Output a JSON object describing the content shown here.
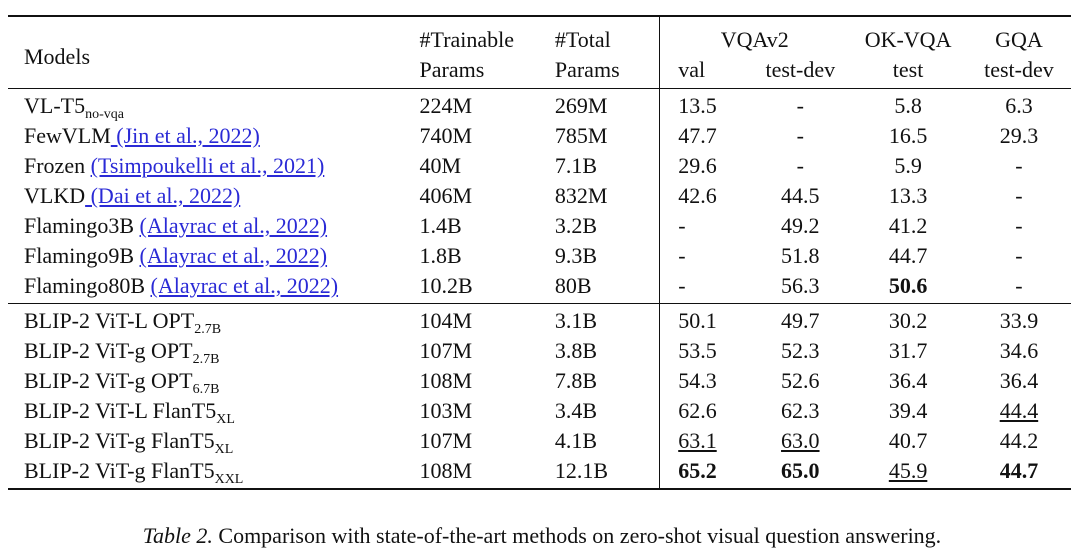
{
  "header": {
    "models": "Models",
    "trainable": [
      "#Trainable",
      "Params"
    ],
    "total": [
      "#Total",
      "Params"
    ],
    "vqav2": "VQAv2",
    "okvqa": "OK-VQA",
    "gqa": "GQA",
    "val": "val",
    "testdev": "test-dev",
    "test": "test",
    "gqa_testdev": "test-dev"
  },
  "rows": [
    {
      "name": "VL-T5",
      "sub": "no-vqa",
      "cite": "",
      "trainable": "224M",
      "total": "269M",
      "val": "13.5",
      "testdev": "-",
      "okvqa": "5.8",
      "gqa": "6.3"
    },
    {
      "name": "FewVLM",
      "sub": "",
      "cite": " (Jin et al., 2022)",
      "trainable": "740M",
      "total": "785M",
      "val": "47.7",
      "testdev": "-",
      "okvqa": "16.5",
      "gqa": "29.3"
    },
    {
      "name": "Frozen ",
      "sub": "",
      "cite": "(Tsimpoukelli et al., 2021)",
      "trainable": "40M",
      "total": "7.1B",
      "val": "29.6",
      "testdev": "-",
      "okvqa": "5.9",
      "gqa": "-"
    },
    {
      "name": "VLKD",
      "sub": "",
      "cite": " (Dai et al., 2022)",
      "trainable": "406M",
      "total": "832M",
      "val": "42.6",
      "testdev": "44.5",
      "okvqa": "13.3",
      "gqa": "-"
    },
    {
      "name": "Flamingo3B ",
      "sub": "",
      "cite": "(Alayrac et al., 2022)",
      "trainable": "1.4B",
      "total": "3.2B",
      "val": "-",
      "testdev": "49.2",
      "okvqa": "41.2",
      "gqa": "-"
    },
    {
      "name": "Flamingo9B ",
      "sub": "",
      "cite": "(Alayrac et al., 2022)",
      "trainable": "1.8B",
      "total": "9.3B",
      "val": "-",
      "testdev": "51.8",
      "okvqa": "44.7",
      "gqa": "-"
    },
    {
      "name": "Flamingo80B ",
      "sub": "",
      "cite": "(Alayrac et al., 2022)",
      "trainable": "10.2B",
      "total": "80B",
      "val": "-",
      "testdev": "56.3",
      "okvqa": "50.6",
      "gqa": "-"
    },
    {
      "name": "BLIP-2 ViT-L OPT",
      "sub": "2.7B",
      "cite": "",
      "trainable": "104M",
      "total": "3.1B",
      "val": "50.1",
      "testdev": "49.7",
      "okvqa": "30.2",
      "gqa": "33.9"
    },
    {
      "name": "BLIP-2 ViT-g OPT",
      "sub": "2.7B",
      "cite": "",
      "trainable": "107M",
      "total": "3.8B",
      "val": "53.5",
      "testdev": "52.3",
      "okvqa": "31.7",
      "gqa": "34.6"
    },
    {
      "name": "BLIP-2 ViT-g OPT",
      "sub": "6.7B",
      "cite": "",
      "trainable": "108M",
      "total": "7.8B",
      "val": "54.3",
      "testdev": "52.6",
      "okvqa": "36.4",
      "gqa": "36.4"
    },
    {
      "name": "BLIP-2 ViT-L FlanT5",
      "sub": "XL",
      "cite": "",
      "trainable": "103M",
      "total": "3.4B",
      "val": "62.6",
      "testdev": "62.3",
      "okvqa": "39.4",
      "gqa": "44.4"
    },
    {
      "name": "BLIP-2 ViT-g FlanT5",
      "sub": "XL",
      "cite": "",
      "trainable": "107M",
      "total": "4.1B",
      "val": "63.1",
      "testdev": "63.0",
      "okvqa": "40.7",
      "gqa": "44.2"
    },
    {
      "name": "BLIP-2 ViT-g FlanT5",
      "sub": "XXL",
      "cite": "",
      "trainable": "108M",
      "total": "12.1B",
      "val": "65.2",
      "testdev": "65.0",
      "okvqa": "45.9",
      "gqa": "44.7"
    }
  ],
  "caption": {
    "label": "Table 2.",
    "text": " Comparison with state-of-the-art methods on zero-shot visual question answering."
  }
}
